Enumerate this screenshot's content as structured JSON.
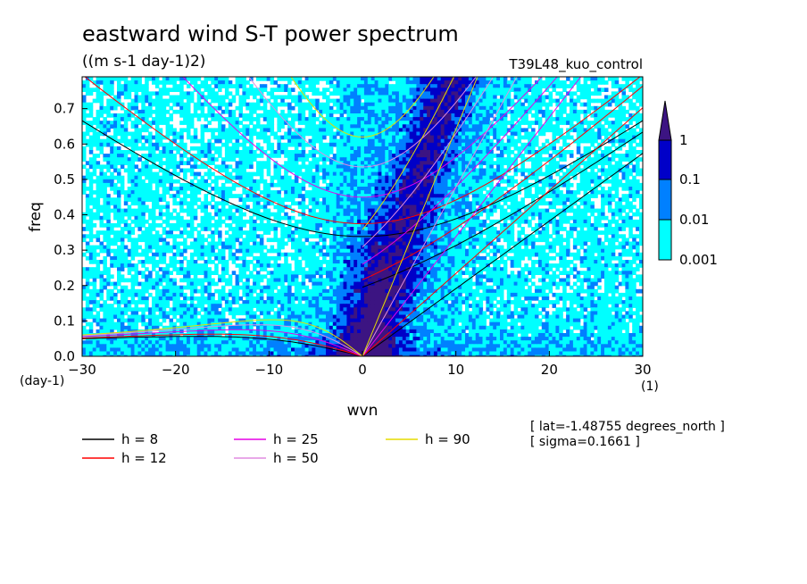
{
  "chart_data": {
    "type": "heatmap",
    "title": "eastward wind S-T power spectrum",
    "subtitle": "((m s-1 day-1)2)",
    "run_label": "T39L48_kuo_control",
    "xlabel": "wvn",
    "ylabel": "freq",
    "x_unit_label": "(1)",
    "y_unit_label": "(day-1)",
    "xlim": [
      -30,
      30
    ],
    "ylim": [
      0,
      0.79
    ],
    "xticks": [
      -30,
      -20,
      -10,
      0,
      10,
      20,
      30
    ],
    "xtick_labels": [
      "−30",
      "−20",
      "−10",
      "0",
      "10",
      "20",
      "30"
    ],
    "yticks": [
      0,
      0.1,
      0.2,
      0.3,
      0.4,
      0.5,
      0.6,
      0.7
    ],
    "ytick_labels": [
      "0.0",
      "0.1",
      "0.2",
      "0.3",
      "0.4",
      "0.5",
      "0.6",
      "0.7"
    ],
    "colorbar": {
      "levels": [
        0.001,
        0.01,
        0.1,
        1
      ],
      "labels": [
        "0.001",
        "0.01",
        "0.1",
        "1"
      ],
      "colors": [
        "#00ffff",
        "#0080ff",
        "#0000c8",
        "#3c1482"
      ]
    },
    "series": [
      {
        "name": "h =  8",
        "h": 8,
        "color": "#000000"
      },
      {
        "name": "h = 12",
        "h": 12,
        "color": "#ff0000"
      },
      {
        "name": "h = 25",
        "h": 25,
        "color": "#e600e6"
      },
      {
        "name": "h = 50",
        "h": 50,
        "color": "#e08ce0"
      },
      {
        "name": "h = 90",
        "h": 90,
        "color": "#e6dc00"
      }
    ],
    "annotations": [
      "[ lat=-1.48755 degrees_north ]",
      "[ sigma=0.1661 ]"
    ]
  }
}
